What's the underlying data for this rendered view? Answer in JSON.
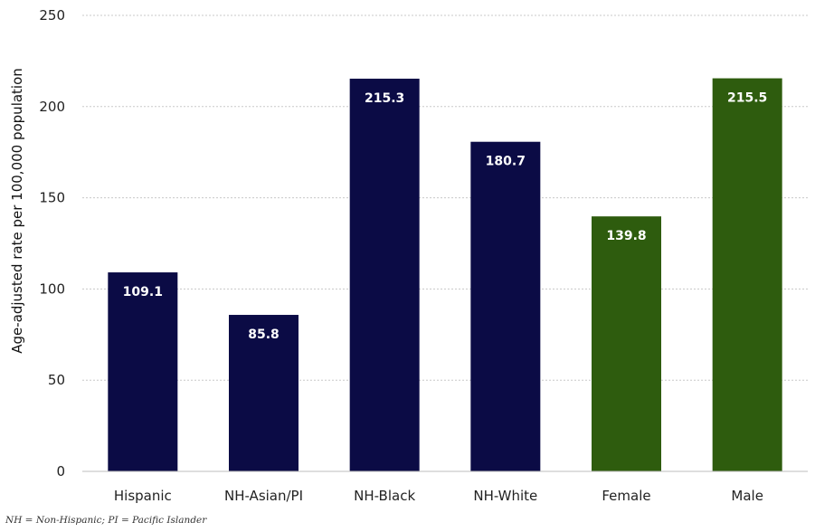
{
  "chart_data": {
    "type": "bar",
    "categories": [
      "Hispanic",
      "NH-Asian/PI",
      "NH-Black",
      "NH-White",
      "Female",
      "Male"
    ],
    "values": [
      109.1,
      85.8,
      215.3,
      180.7,
      139.8,
      215.5
    ],
    "data_labels": [
      "109.1",
      "85.8",
      "215.3",
      "180.7",
      "139.8",
      "215.5"
    ],
    "ylabel": "Age-adjusted rate per 100,000 population",
    "xlabel": "",
    "ylim": [
      0,
      250
    ],
    "yticks": [
      "0",
      "50",
      "100",
      "150",
      "200",
      "250"
    ],
    "grid": true,
    "colors": [
      "#0b0b45",
      "#0b0b45",
      "#0b0b45",
      "#0b0b45",
      "#2e5c0e",
      "#2e5c0e"
    ]
  },
  "footnote": "NH = Non-Hispanic; PI = Pacific Islander"
}
